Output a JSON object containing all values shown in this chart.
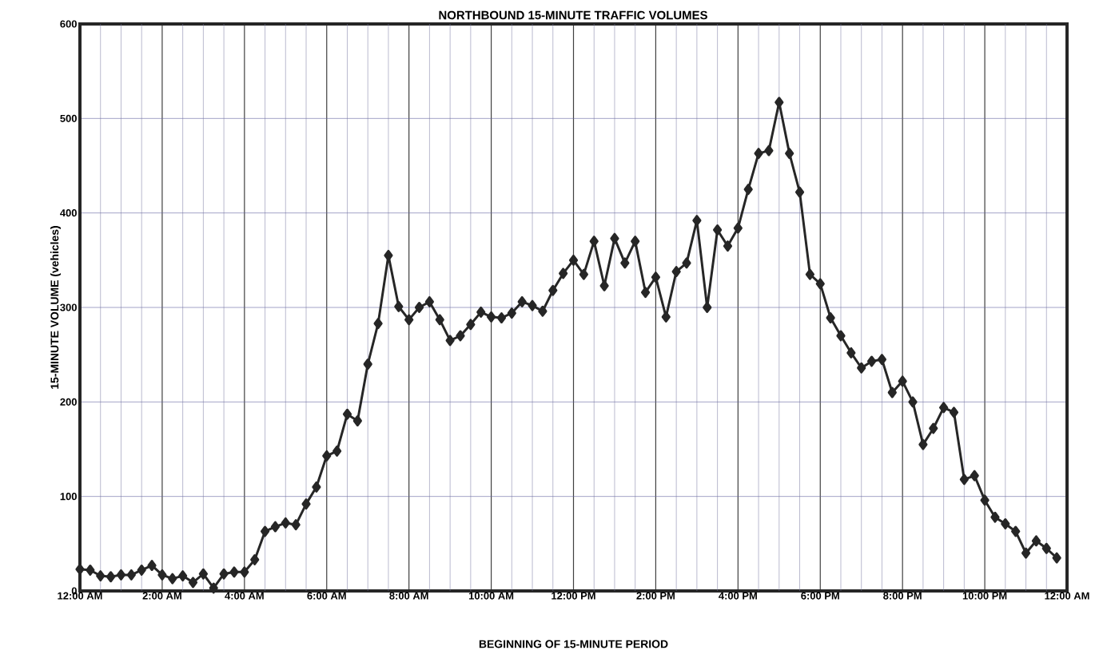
{
  "chart_data": {
    "type": "line",
    "title": "NORTHBOUND 15-MINUTE TRAFFIC VOLUMES",
    "xlabel": "BEGINNING OF 15-MINUTE PERIOD",
    "ylabel": "15-MINUTE VOLUME (vehicles)",
    "x": [
      0,
      0.25,
      0.5,
      0.75,
      1,
      1.25,
      1.5,
      1.75,
      2,
      2.25,
      2.5,
      2.75,
      3,
      3.25,
      3.5,
      3.75,
      4,
      4.25,
      4.5,
      4.75,
      5,
      5.25,
      5.5,
      5.75,
      6,
      6.25,
      6.5,
      6.75,
      7,
      7.25,
      7.5,
      7.75,
      8,
      8.25,
      8.5,
      8.75,
      9,
      9.25,
      9.5,
      9.75,
      10,
      10.25,
      10.5,
      10.75,
      11,
      11.25,
      11.5,
      11.75,
      12,
      12.25,
      12.5,
      12.75,
      13,
      13.25,
      13.5,
      13.75,
      14,
      14.25,
      14.5,
      14.75,
      15,
      15.25,
      15.5,
      15.75,
      16,
      16.25,
      16.5,
      16.75,
      17,
      17.25,
      17.5,
      17.75,
      18,
      18.25,
      18.5,
      18.75,
      19,
      19.25,
      19.5,
      19.75,
      20,
      20.25,
      20.5,
      20.75,
      21,
      21.25,
      21.5,
      21.75,
      22,
      22.25,
      22.5,
      22.75,
      23,
      23.25,
      23.5,
      23.75
    ],
    "series": [
      {
        "color": "#262626",
        "values": [
          23,
          22,
          16,
          15,
          17,
          17,
          22,
          27,
          17,
          13,
          16,
          9,
          18,
          3,
          18,
          20,
          20,
          33,
          63,
          68,
          72,
          70,
          92,
          110,
          143,
          148,
          187,
          180,
          240,
          283,
          355,
          301,
          287,
          300,
          306,
          287,
          265,
          270,
          282,
          295,
          290,
          289,
          294,
          306,
          302,
          296,
          318,
          336,
          350,
          335,
          370,
          323,
          373,
          347,
          370,
          316,
          332,
          290,
          338,
          347,
          392,
          300,
          382,
          365,
          384,
          425,
          463,
          466,
          517,
          463,
          422,
          335,
          325,
          289,
          270,
          252,
          236,
          243,
          245,
          210,
          222,
          200,
          155,
          172,
          194,
          189,
          118,
          122,
          96,
          78,
          71,
          63,
          40,
          53,
          45,
          35
        ]
      }
    ],
    "xlim": [
      0,
      24
    ],
    "ylim": [
      0,
      600
    ],
    "xticks": [
      {
        "value": 0,
        "label": "12:00 AM"
      },
      {
        "value": 2,
        "label": "2:00 AM"
      },
      {
        "value": 4,
        "label": "4:00 AM"
      },
      {
        "value": 6,
        "label": "6:00 AM"
      },
      {
        "value": 8,
        "label": "8:00 AM"
      },
      {
        "value": 10,
        "label": "10:00 AM"
      },
      {
        "value": 12,
        "label": "12:00 PM"
      },
      {
        "value": 14,
        "label": "2:00 PM"
      },
      {
        "value": 16,
        "label": "4:00 PM"
      },
      {
        "value": 18,
        "label": "6:00 PM"
      },
      {
        "value": 20,
        "label": "8:00 PM"
      },
      {
        "value": 22,
        "label": "10:00 PM"
      },
      {
        "value": 24,
        "label": "12:00 AM"
      },
      {
        "value": 0.5,
        "label": null
      },
      {
        "value": 1,
        "label": null
      },
      {
        "value": 1.5,
        "label": null
      },
      {
        "value": 2.5,
        "label": null
      },
      {
        "value": 3,
        "label": null
      },
      {
        "value": 3.5,
        "label": null
      },
      {
        "value": 4.5,
        "label": null
      },
      {
        "value": 5,
        "label": null
      },
      {
        "value": 5.5,
        "label": null
      },
      {
        "value": 6.5,
        "label": null
      },
      {
        "value": 7,
        "label": null
      },
      {
        "value": 7.5,
        "label": null
      },
      {
        "value": 8.5,
        "label": null
      },
      {
        "value": 9,
        "label": null
      },
      {
        "value": 9.5,
        "label": null
      },
      {
        "value": 10.5,
        "label": null
      },
      {
        "value": 11,
        "label": null
      },
      {
        "value": 11.5,
        "label": null
      },
      {
        "value": 12.5,
        "label": null
      },
      {
        "value": 13,
        "label": null
      },
      {
        "value": 13.5,
        "label": null
      },
      {
        "value": 14.5,
        "label": null
      },
      {
        "value": 15,
        "label": null
      },
      {
        "value": 15.5,
        "label": null
      },
      {
        "value": 16.5,
        "label": null
      },
      {
        "value": 17,
        "label": null
      },
      {
        "value": 17.5,
        "label": null
      },
      {
        "value": 18.5,
        "label": null
      },
      {
        "value": 19,
        "label": null
      },
      {
        "value": 19.5,
        "label": null
      },
      {
        "value": 20.5,
        "label": null
      },
      {
        "value": 21,
        "label": null
      },
      {
        "value": 21.5,
        "label": null
      },
      {
        "value": 22.5,
        "label": null
      },
      {
        "value": 23,
        "label": null
      },
      {
        "value": 23.5,
        "label": null
      }
    ],
    "yticks": [
      0,
      100,
      200,
      300,
      400,
      500,
      600
    ],
    "grid": true,
    "marker": "diamond",
    "line_style": "solid"
  }
}
